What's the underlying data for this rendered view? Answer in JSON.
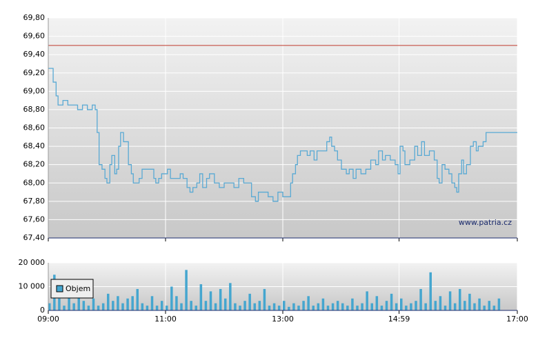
{
  "chart_data": [
    {
      "type": "line",
      "watermark": "www.patria.cz",
      "color": "#58a9d4",
      "reference_line": 69.5,
      "reference_color": "#c0392b",
      "grid": true,
      "xlim": [
        "09:00",
        "17:00"
      ],
      "xticks": [
        "09:00",
        "11:00",
        "13:00",
        "14:59",
        "17:00"
      ],
      "ylim": [
        67.4,
        69.8
      ],
      "yticks": [
        {
          "value": 67.4,
          "label": "67,40"
        },
        {
          "value": 67.6,
          "label": "67,60"
        },
        {
          "value": 67.8,
          "label": "67,80"
        },
        {
          "value": 68.0,
          "label": "68,00"
        },
        {
          "value": 68.2,
          "label": "68,20"
        },
        {
          "value": 68.4,
          "label": "68,40"
        },
        {
          "value": 68.6,
          "label": "68,60"
        },
        {
          "value": 68.8,
          "label": "68,80"
        },
        {
          "value": 69.0,
          "label": "69,00"
        },
        {
          "value": 69.2,
          "label": "69,20"
        },
        {
          "value": 69.4,
          "label": "69,40"
        },
        {
          "value": 69.6,
          "label": "69,60"
        },
        {
          "value": 69.8,
          "label": "69,80"
        }
      ],
      "x": [
        "09:00",
        "09:03",
        "09:05",
        "09:08",
        "09:10",
        "09:15",
        "09:20",
        "09:25",
        "09:30",
        "09:35",
        "09:40",
        "09:45",
        "09:48",
        "09:50",
        "09:52",
        "09:55",
        "09:58",
        "10:00",
        "10:03",
        "10:05",
        "10:08",
        "10:10",
        "10:12",
        "10:14",
        "10:17",
        "10:20",
        "10:22",
        "10:25",
        "10:27",
        "10:30",
        "10:33",
        "10:36",
        "10:40",
        "10:45",
        "10:48",
        "10:50",
        "10:53",
        "10:56",
        "11:00",
        "11:02",
        "11:05",
        "11:10",
        "11:15",
        "11:18",
        "11:22",
        "11:25",
        "11:28",
        "11:32",
        "11:35",
        "11:38",
        "11:42",
        "11:45",
        "11:50",
        "11:55",
        "12:00",
        "12:05",
        "12:10",
        "12:15",
        "12:20",
        "12:25",
        "12:28",
        "12:32",
        "12:35",
        "12:40",
        "12:45",
        "12:50",
        "12:55",
        "13:00",
        "13:05",
        "13:08",
        "13:10",
        "13:13",
        "13:15",
        "13:18",
        "13:22",
        "13:25",
        "13:28",
        "13:32",
        "13:35",
        "13:40",
        "13:45",
        "13:48",
        "13:50",
        "13:53",
        "13:56",
        "14:00",
        "14:05",
        "14:08",
        "14:12",
        "14:15",
        "14:20",
        "14:25",
        "14:30",
        "14:35",
        "14:38",
        "14:42",
        "14:45",
        "14:50",
        "14:55",
        "14:58",
        "15:00",
        "15:03",
        "15:05",
        "15:10",
        "15:15",
        "15:18",
        "15:22",
        "15:25",
        "15:30",
        "15:35",
        "15:38",
        "15:40",
        "15:43",
        "15:46",
        "15:50",
        "15:53",
        "15:56",
        "15:58",
        "16:00",
        "16:03",
        "16:05",
        "16:08",
        "16:12",
        "16:15",
        "16:18",
        "16:20",
        "16:25",
        "16:28",
        "17:00"
      ],
      "values": [
        69.25,
        69.25,
        69.1,
        68.95,
        68.85,
        68.9,
        68.85,
        68.85,
        68.8,
        68.85,
        68.8,
        68.85,
        68.8,
        68.55,
        68.2,
        68.15,
        68.05,
        68.0,
        68.2,
        68.3,
        68.1,
        68.15,
        68.4,
        68.55,
        68.45,
        68.45,
        68.2,
        68.1,
        68.0,
        68.0,
        68.05,
        68.15,
        68.15,
        68.15,
        68.05,
        68.0,
        68.05,
        68.1,
        68.1,
        68.15,
        68.05,
        68.05,
        68.1,
        68.05,
        67.95,
        67.9,
        67.95,
        68.0,
        68.1,
        67.95,
        68.05,
        68.1,
        68.0,
        67.95,
        68.0,
        68.0,
        67.95,
        68.05,
        68.0,
        68.0,
        67.85,
        67.8,
        67.9,
        67.9,
        67.85,
        67.8,
        67.9,
        67.85,
        67.85,
        68.0,
        68.1,
        68.2,
        68.3,
        68.35,
        68.35,
        68.3,
        68.35,
        68.25,
        68.35,
        68.35,
        68.45,
        68.5,
        68.4,
        68.35,
        68.25,
        68.15,
        68.1,
        68.15,
        68.05,
        68.15,
        68.1,
        68.15,
        68.25,
        68.2,
        68.35,
        68.25,
        68.3,
        68.25,
        68.2,
        68.1,
        68.4,
        68.35,
        68.2,
        68.25,
        68.4,
        68.3,
        68.45,
        68.3,
        68.35,
        68.25,
        68.05,
        68.0,
        68.2,
        68.15,
        68.1,
        68.0,
        67.95,
        67.9,
        68.1,
        68.25,
        68.1,
        68.2,
        68.4,
        68.45,
        68.35,
        68.4,
        68.45,
        68.55,
        68.55
      ]
    },
    {
      "type": "bar",
      "grid": true,
      "legend": "upper-left",
      "xlim": [
        "09:00",
        "17:00"
      ],
      "xticks": [
        "09:00",
        "11:00",
        "13:00",
        "14:59",
        "17:00"
      ],
      "ylim": [
        0,
        20000
      ],
      "yticks": [
        0,
        {
          "value": 10000,
          "label": "10 000"
        },
        {
          "value": 20000,
          "label": "20 000"
        }
      ],
      "x": [
        "09:00",
        "09:05",
        "09:10",
        "09:15",
        "09:20",
        "09:25",
        "09:30",
        "09:35",
        "09:40",
        "09:45",
        "09:50",
        "09:55",
        "10:00",
        "10:05",
        "10:10",
        "10:15",
        "10:20",
        "10:25",
        "10:30",
        "10:35",
        "10:40",
        "10:45",
        "10:50",
        "10:55",
        "11:00",
        "11:05",
        "11:10",
        "11:15",
        "11:20",
        "11:25",
        "11:30",
        "11:35",
        "11:40",
        "11:45",
        "11:50",
        "11:55",
        "12:00",
        "12:05",
        "12:10",
        "12:15",
        "12:20",
        "12:25",
        "12:30",
        "12:35",
        "12:40",
        "12:45",
        "12:50",
        "12:55",
        "13:00",
        "13:05",
        "13:10",
        "13:15",
        "13:20",
        "13:25",
        "13:30",
        "13:35",
        "13:40",
        "13:45",
        "13:50",
        "13:55",
        "14:00",
        "14:05",
        "14:10",
        "14:15",
        "14:20",
        "14:25",
        "14:30",
        "14:35",
        "14:40",
        "14:45",
        "14:50",
        "14:55",
        "15:00",
        "15:05",
        "15:10",
        "15:15",
        "15:20",
        "15:25",
        "15:30",
        "15:35",
        "15:40",
        "15:45",
        "15:50",
        "15:55",
        "16:00",
        "16:05",
        "16:10",
        "16:15",
        "16:20",
        "16:25",
        "16:30",
        "16:35",
        "16:40"
      ],
      "series": [
        {
          "name": "Objem",
          "color": "#45a6cf",
          "values": [
            3000,
            15000,
            5000,
            2000,
            8000,
            3000,
            6000,
            4000,
            2000,
            5000,
            2000,
            3000,
            7000,
            4000,
            6000,
            3000,
            5000,
            6000,
            9000,
            3000,
            2000,
            6000,
            2000,
            4000,
            2000,
            10000,
            6000,
            3000,
            17000,
            4000,
            2000,
            11000,
            4000,
            8000,
            3000,
            9000,
            5000,
            11500,
            3000,
            2000,
            4000,
            7000,
            3000,
            4000,
            9000,
            2000,
            3000,
            2000,
            4000,
            1500,
            3000,
            2000,
            4000,
            6000,
            2000,
            3000,
            5000,
            2000,
            3000,
            4000,
            3000,
            2000,
            5000,
            2000,
            3000,
            8000,
            3000,
            6000,
            2000,
            4000,
            7000,
            3000,
            5000,
            2000,
            3000,
            4000,
            9000,
            3000,
            16000,
            4000,
            6000,
            2000,
            8000,
            3000,
            9000,
            4000,
            7000,
            3000,
            5000,
            2000,
            4000,
            2000,
            5000
          ]
        }
      ]
    }
  ]
}
